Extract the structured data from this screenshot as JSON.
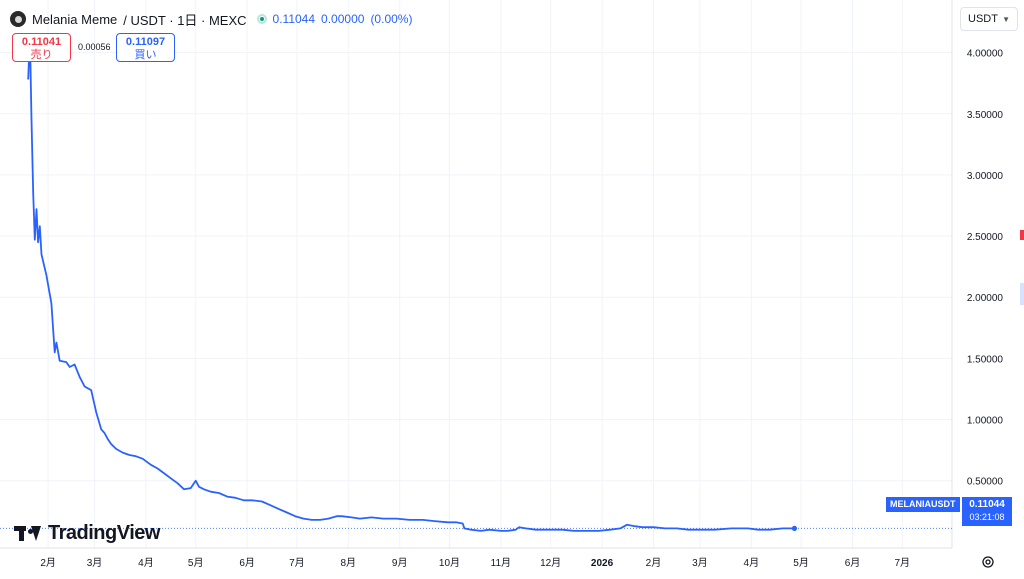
{
  "header": {
    "symbol": "Melania Meme",
    "pair": "/ USDT · 1日 · MEXC",
    "last": "0.11044",
    "change": "0.00000",
    "change_pct": "(0.00%)"
  },
  "trade": {
    "sell_price": "0.11041",
    "sell_label": "売り",
    "spread": "0.00056",
    "buy_price": "0.11097",
    "buy_label": "買い"
  },
  "currency_button": "USDT",
  "price_label": {
    "symbol": "MELANIAUSDT",
    "price": "0.11044",
    "countdown": "03:21:08"
  },
  "brand": "TradingView",
  "colors": {
    "line": "#2962ff",
    "grid": "#f0f3fa",
    "up": "#089981",
    "down": "#f23645"
  },
  "icons": [
    "symbol-logo-icon",
    "market-status-icon",
    "chevron-down-icon",
    "tradingview-logo-icon",
    "settings-icon"
  ],
  "chart_data": {
    "type": "line",
    "series": [
      {
        "values": [
          [
            "2025-01-20",
            3.78
          ],
          [
            "2025-01-21",
            4.15
          ],
          [
            "2025-01-22",
            3.45
          ],
          [
            "2025-01-23",
            2.85
          ],
          [
            "2025-01-24",
            2.47
          ],
          [
            "2025-01-25",
            2.72
          ],
          [
            "2025-01-26",
            2.45
          ],
          [
            "2025-01-27",
            2.58
          ],
          [
            "2025-01-28",
            2.35
          ],
          [
            "2025-01-31",
            2.18
          ],
          [
            "2025-02-03",
            1.95
          ],
          [
            "2025-02-05",
            1.55
          ],
          [
            "2025-02-06",
            1.63
          ],
          [
            "2025-02-08",
            1.48
          ],
          [
            "2025-02-12",
            1.47
          ],
          [
            "2025-02-14",
            1.43
          ],
          [
            "2025-02-17",
            1.45
          ],
          [
            "2025-02-20",
            1.35
          ],
          [
            "2025-02-23",
            1.27
          ],
          [
            "2025-02-27",
            1.24
          ],
          [
            "2025-03-02",
            1.06
          ],
          [
            "2025-03-05",
            0.92
          ],
          [
            "2025-03-07",
            0.89
          ],
          [
            "2025-03-09",
            0.84
          ],
          [
            "2025-03-11",
            0.8
          ],
          [
            "2025-03-14",
            0.76
          ],
          [
            "2025-03-18",
            0.73
          ],
          [
            "2025-03-22",
            0.71
          ],
          [
            "2025-03-26",
            0.7
          ],
          [
            "2025-03-30",
            0.68
          ],
          [
            "2025-04-04",
            0.63
          ],
          [
            "2025-04-08",
            0.6
          ],
          [
            "2025-04-12",
            0.56
          ],
          [
            "2025-04-16",
            0.52
          ],
          [
            "2025-04-20",
            0.48
          ],
          [
            "2025-04-24",
            0.43
          ],
          [
            "2025-04-28",
            0.44
          ],
          [
            "2025-05-01",
            0.5
          ],
          [
            "2025-05-03",
            0.45
          ],
          [
            "2025-05-06",
            0.43
          ],
          [
            "2025-05-10",
            0.41
          ],
          [
            "2025-05-15",
            0.4
          ],
          [
            "2025-05-20",
            0.37
          ],
          [
            "2025-05-25",
            0.36
          ],
          [
            "2025-05-30",
            0.34
          ],
          [
            "2025-06-04",
            0.34
          ],
          [
            "2025-06-10",
            0.33
          ],
          [
            "2025-06-15",
            0.3
          ],
          [
            "2025-06-20",
            0.27
          ],
          [
            "2025-06-25",
            0.24
          ],
          [
            "2025-06-30",
            0.21
          ],
          [
            "2025-07-05",
            0.19
          ],
          [
            "2025-07-10",
            0.18
          ],
          [
            "2025-07-15",
            0.18
          ],
          [
            "2025-07-20",
            0.19
          ],
          [
            "2025-07-25",
            0.21
          ],
          [
            "2025-07-28",
            0.21
          ],
          [
            "2025-08-03",
            0.2
          ],
          [
            "2025-08-08",
            0.19
          ],
          [
            "2025-08-15",
            0.2
          ],
          [
            "2025-08-22",
            0.19
          ],
          [
            "2025-08-30",
            0.19
          ],
          [
            "2025-09-07",
            0.18
          ],
          [
            "2025-09-15",
            0.18
          ],
          [
            "2025-09-22",
            0.17
          ],
          [
            "2025-09-30",
            0.16
          ],
          [
            "2025-10-05",
            0.16
          ],
          [
            "2025-10-09",
            0.15
          ],
          [
            "2025-10-10",
            0.11
          ],
          [
            "2025-10-14",
            0.1
          ],
          [
            "2025-10-20",
            0.09
          ],
          [
            "2025-10-25",
            0.1
          ],
          [
            "2025-11-01",
            0.09
          ],
          [
            "2025-11-05",
            0.09
          ],
          [
            "2025-11-10",
            0.1
          ],
          [
            "2025-11-12",
            0.12
          ],
          [
            "2025-11-16",
            0.11
          ],
          [
            "2025-11-22",
            0.1
          ],
          [
            "2025-11-30",
            0.1
          ],
          [
            "2025-12-08",
            0.1
          ],
          [
            "2025-12-15",
            0.09
          ],
          [
            "2025-12-22",
            0.09
          ],
          [
            "2025-12-30",
            0.09
          ],
          [
            "2026-01-06",
            0.1
          ],
          [
            "2026-01-12",
            0.11
          ],
          [
            "2026-01-16",
            0.14
          ],
          [
            "2026-01-20",
            0.13
          ],
          [
            "2026-01-25",
            0.12
          ],
          [
            "2026-02-01",
            0.12
          ],
          [
            "2026-02-08",
            0.11
          ],
          [
            "2026-02-15",
            0.11
          ],
          [
            "2026-02-22",
            0.1
          ],
          [
            "2026-03-01",
            0.1
          ],
          [
            "2026-03-10",
            0.1
          ],
          [
            "2026-03-20",
            0.11
          ],
          [
            "2026-03-30",
            0.11
          ],
          [
            "2026-04-05",
            0.1
          ],
          [
            "2026-04-12",
            0.1
          ],
          [
            "2026-04-20",
            0.11
          ],
          [
            "2026-04-27",
            0.11044
          ]
        ]
      }
    ],
    "x_ticks": [
      "2月",
      "3月",
      "4月",
      "5月",
      "6月",
      "7月",
      "8月",
      "9月",
      "10月",
      "11月",
      "12月",
      "2026",
      "2月",
      "3月",
      "4月",
      "5月",
      "6月",
      "7月"
    ],
    "y_ticks": [
      "4.00000",
      "3.50000",
      "3.00000",
      "2.50000",
      "2.00000",
      "1.50000",
      "1.00000",
      "0.50000"
    ],
    "xlim": [
      "2025-01-03",
      "2026-07-31"
    ],
    "ylim": [
      -0.05,
      4.43
    ],
    "y_scale": "linear",
    "grid": true,
    "legend": "top-left"
  }
}
